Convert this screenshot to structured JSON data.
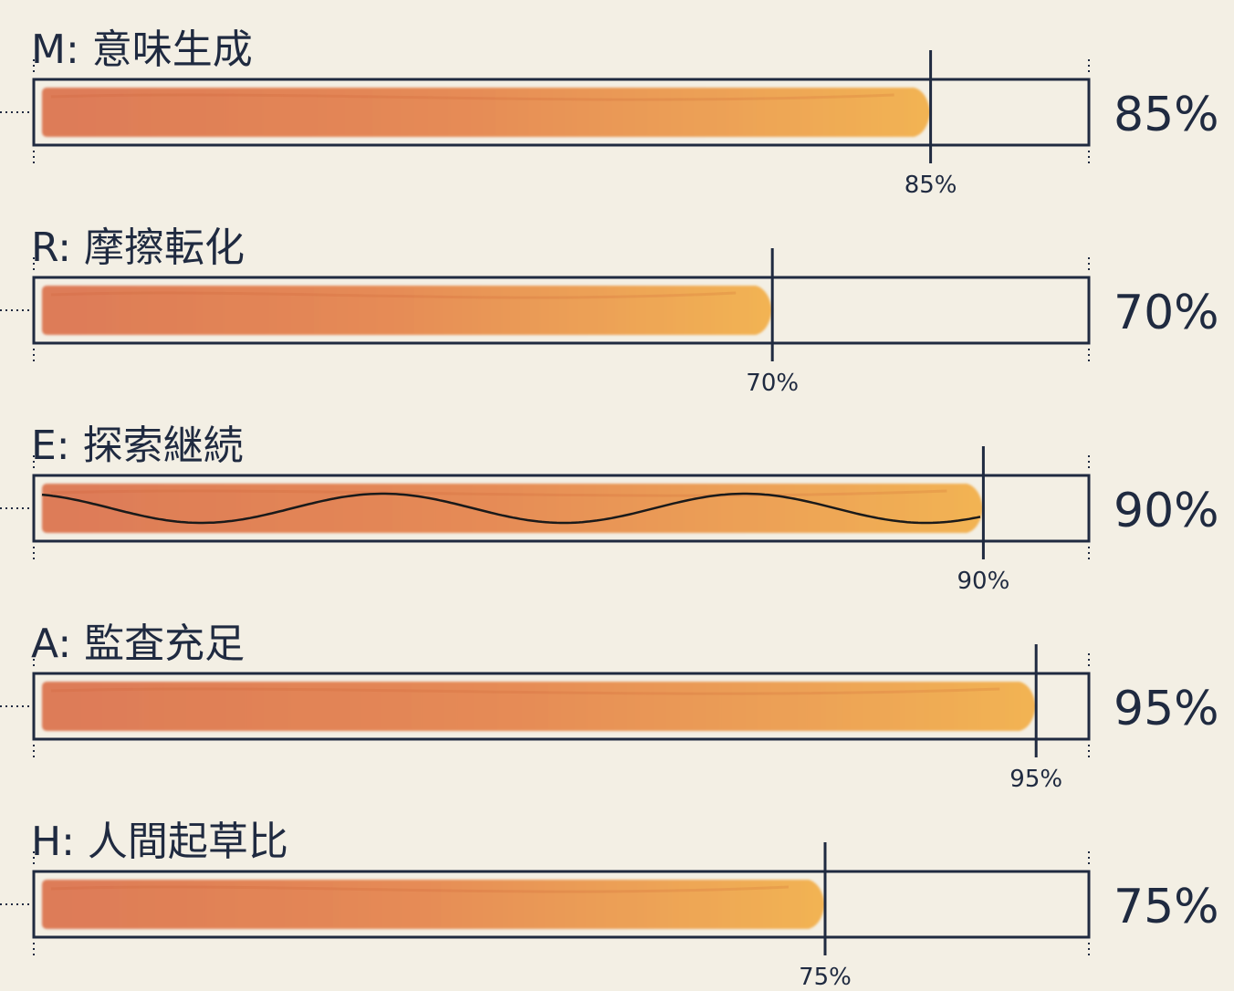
{
  "chart_data": {
    "type": "bar",
    "orientation": "horizontal",
    "xlim": [
      0,
      100
    ],
    "unit": "%",
    "categories": [
      "M: 意味生成",
      "R: 摩擦転化",
      "E: 探索継続",
      "A: 監査充足",
      "H: 人間起草比"
    ],
    "values": [
      85,
      70,
      90,
      95,
      75
    ],
    "value_labels": [
      "85%",
      "70%",
      "90%",
      "95%",
      "75%"
    ],
    "marker_labels": [
      "85%",
      "70%",
      "90%",
      "95%",
      "75%"
    ],
    "wave_overlay_on": "E: 探索継続",
    "colors": {
      "fill_start": "#d9673e",
      "fill_end": "#f2a93b",
      "frame": "#1f2a40",
      "background": "#f3efe4"
    }
  }
}
